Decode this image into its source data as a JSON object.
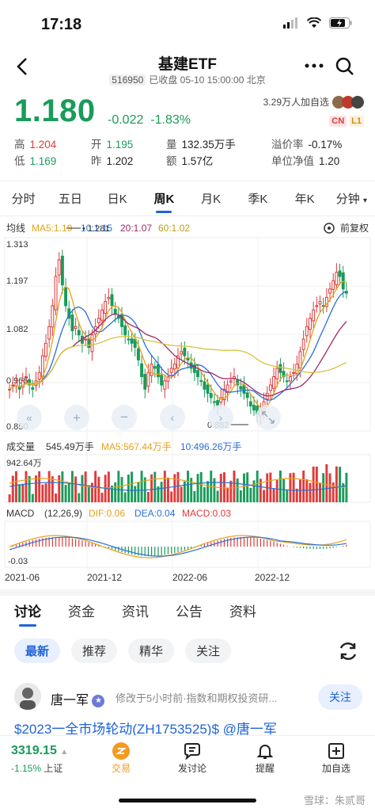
{
  "status_bar": {
    "time": "17:18"
  },
  "nav": {
    "title": "基建ETF",
    "code": "516950",
    "status": "已收盘 05-10 15:00:00 北京"
  },
  "quote": {
    "price": "1.180",
    "change": "-0.022",
    "change_pct": "-1.83%",
    "followers": "3.29万人加自选",
    "badge_cn": "CN",
    "badge_l1": "L1",
    "stats": [
      {
        "label": "高",
        "value": "1.204",
        "color": "red"
      },
      {
        "label": "开",
        "value": "1.195",
        "color": "green"
      },
      {
        "label": "量",
        "value": "132.35万手",
        "color": "none"
      },
      {
        "label": "溢价率",
        "value": "-0.17%",
        "color": "none"
      },
      {
        "label": "低",
        "value": "1.169",
        "color": "green"
      },
      {
        "label": "昨",
        "value": "1.202",
        "color": "none"
      },
      {
        "label": "额",
        "value": "1.57亿",
        "color": "none"
      },
      {
        "label": "单位净值",
        "value": "1.20",
        "color": "none"
      }
    ]
  },
  "period_tabs": [
    "分时",
    "五日",
    "日K",
    "周K",
    "月K",
    "季K",
    "年K",
    "分钟"
  ],
  "active_period": "周K",
  "chart_header": {
    "label": "均线",
    "ma5": "MA5:1.19",
    "ma10": "10:1.15",
    "ma20": "20:1.07",
    "ma60": "60:1.02",
    "adjust": "前复权"
  },
  "chart_data": {
    "type": "candlestick",
    "price_axis": [
      "1.313",
      "1.197",
      "1.082",
      "0.966",
      "0.850"
    ],
    "high_marker": "1.281",
    "low_marker": "0.882",
    "x_ticks": [
      "2021-06",
      "2021-12",
      "2022-06",
      "2022-12"
    ],
    "volume_header": {
      "label": "成交量",
      "vol": "545.49万手",
      "ma5": "MA5:567.44万手",
      "ma10": "10:496.26万手"
    },
    "volume_axis_max": "942.64万",
    "macd_header": {
      "label": "MACD",
      "params": "(12,26,9)",
      "dif": "DIF:0.06",
      "dea": "DEA:0.04",
      "macd": "MACD:0.03"
    },
    "macd_axis_min": "-0.03",
    "colors": {
      "up": "#e03a3a",
      "down": "#1a9b5a",
      "ma5": "#e6a21a",
      "ma10": "#2a6fd8",
      "ma20": "#9b2a6b",
      "ma60": "#d8c23a"
    }
  },
  "content_tabs": [
    "讨论",
    "资金",
    "资讯",
    "公告",
    "资料"
  ],
  "filter_chips": [
    "最新",
    "推荐",
    "精华",
    "关注"
  ],
  "post": {
    "author": "唐一军",
    "meta": "修改于5小时前·指数和期权投资研...",
    "follow": "关注",
    "text": "$2023一全市场轮动(ZH1753525)$ @唐一军"
  },
  "bottom_bar": {
    "index_value": "3319.15",
    "index_change": "-1.15%",
    "index_name": "上证",
    "items": [
      "交易",
      "发讨论",
      "提醒",
      "加自选"
    ]
  },
  "watermark": "雪球：朱贰哥"
}
